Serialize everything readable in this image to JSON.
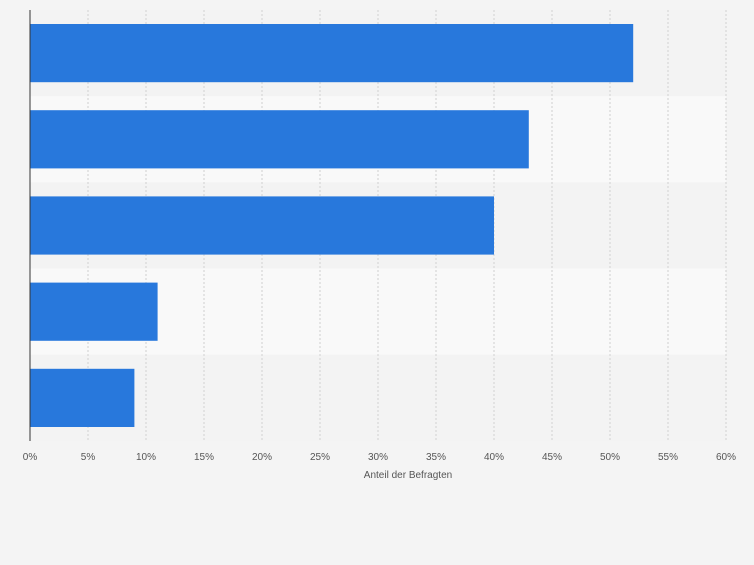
{
  "chart_data": {
    "type": "bar",
    "orientation": "horizontal",
    "categories": [
      "",
      "",
      "",
      "",
      ""
    ],
    "values": [
      52,
      43,
      40,
      11,
      9
    ],
    "xlabel": "Anteil der Befragten",
    "ylabel": "",
    "xlim": [
      0,
      60
    ],
    "ticks": [
      0,
      5,
      10,
      15,
      20,
      25,
      30,
      35,
      40,
      45,
      50,
      55,
      60
    ],
    "tick_format": "{v}%",
    "grid": "vertical-dashed",
    "legend": "none",
    "colors": {
      "bar": "#2878dc",
      "band_dark": "#f3f3f3",
      "band_light": "#f9f9f9",
      "page": "#f4f4f4",
      "grid": "#d0d0d0",
      "axis": "#333333",
      "tick_text": "#555555"
    }
  }
}
